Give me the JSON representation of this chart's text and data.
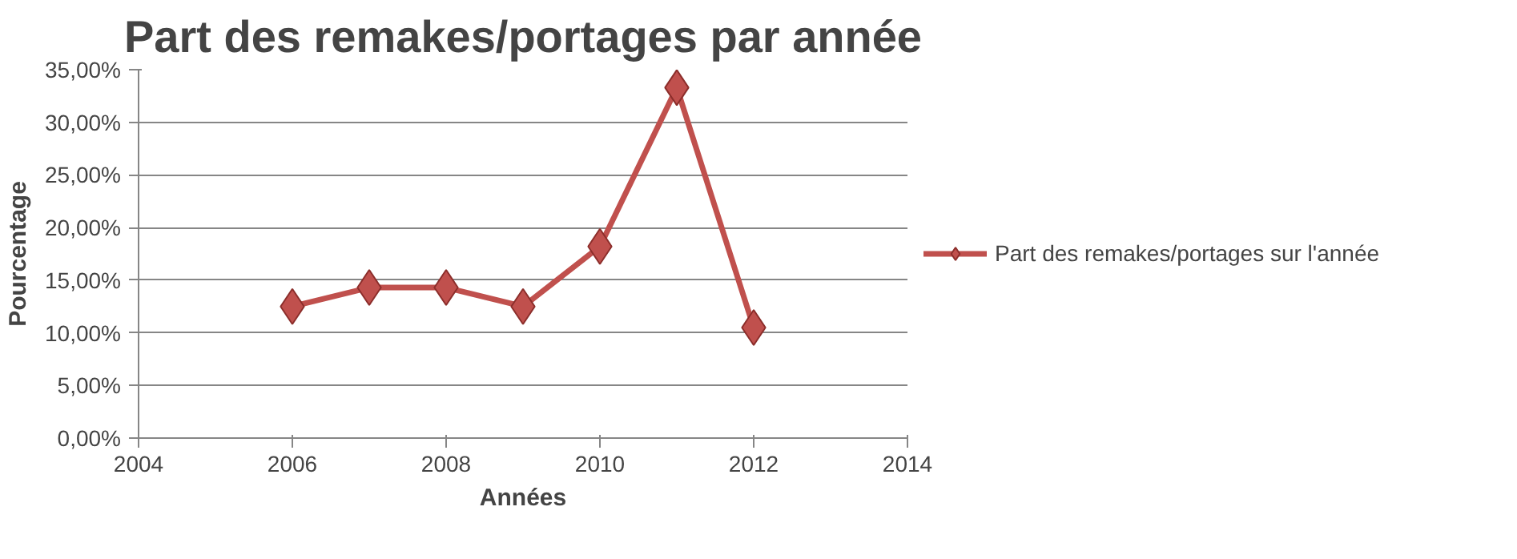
{
  "chart_data": {
    "type": "line",
    "title": "Part des remakes/portages par année",
    "xlabel": "Années",
    "ylabel": "Pourcentage",
    "x": [
      2006,
      2007,
      2008,
      2009,
      2010,
      2011,
      2012
    ],
    "series": [
      {
        "name": "Part des remakes/portages sur l'année",
        "color": "#c0504d",
        "values": [
          12.5,
          14.3,
          14.3,
          12.5,
          18.2,
          33.3,
          10.5
        ]
      }
    ],
    "xlim": [
      2004,
      2014
    ],
    "xticks": [
      2004,
      2006,
      2008,
      2010,
      2012,
      2014
    ],
    "ylim": [
      0,
      35
    ],
    "yticks": [
      {
        "value": 0,
        "label": "0,00%"
      },
      {
        "value": 5,
        "label": "5,00%"
      },
      {
        "value": 10,
        "label": "10,00%"
      },
      {
        "value": 15,
        "label": "15,00%"
      },
      {
        "value": 20,
        "label": "20,00%"
      },
      {
        "value": 25,
        "label": "25,00%"
      },
      {
        "value": 30,
        "label": "30,00%"
      },
      {
        "value": 35,
        "label": "35,00%"
      }
    ],
    "grid": "y",
    "legend": "right",
    "marker": "diamond",
    "line_style": "solid"
  }
}
